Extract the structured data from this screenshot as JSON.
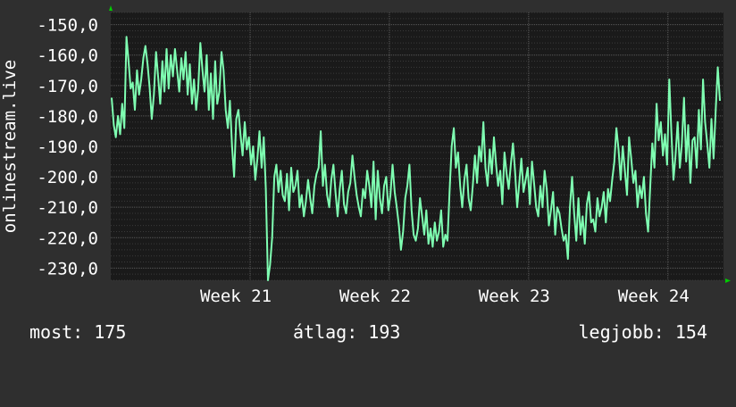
{
  "colors": {
    "background": "#2f2f2f",
    "plot_background": "#1a1a1a",
    "grid_major": "#5a5a5a",
    "grid_minor": "#3a3a3a",
    "line": "#7fffb2",
    "axis_arrow": "#00cc00",
    "text": "#ffffff"
  },
  "stats": {
    "current": "most: 175",
    "average": "átlag: 193",
    "best": "legjobb: 154"
  },
  "chart_data": {
    "type": "line",
    "title": "",
    "xlabel": "",
    "ylabel": "onlinestream.live",
    "x_ticks": [
      "Week 21",
      "Week 22",
      "Week 23",
      "Week 24"
    ],
    "y_ticks": [
      "-150,0",
      "-160,0",
      "-170,0",
      "-180,0",
      "-190,0",
      "-200,0",
      "-210,0",
      "-220,0",
      "-230,0"
    ],
    "ylim": [
      -234,
      -146
    ],
    "grid": true,
    "series": [
      {
        "values": [
          -174,
          -183,
          -187,
          -180,
          -186,
          -176,
          -184,
          -154,
          -162,
          -171,
          -169,
          -178,
          -165,
          -173,
          -168,
          -161,
          -157,
          -163,
          -171,
          -181,
          -173,
          -159,
          -167,
          -176,
          -162,
          -172,
          -158,
          -171,
          -160,
          -167,
          -158,
          -165,
          -172,
          -161,
          -168,
          -159,
          -173,
          -163,
          -176,
          -168,
          -178,
          -171,
          -156,
          -165,
          -172,
          -160,
          -178,
          -166,
          -181,
          -162,
          -176,
          -172,
          -159,
          -165,
          -178,
          -184,
          -175,
          -190,
          -200,
          -181,
          -178,
          -186,
          -193,
          -182,
          -191,
          -187,
          -196,
          -190,
          -201,
          -194,
          -185,
          -197,
          -187,
          -204,
          -234,
          -229,
          -220,
          -200,
          -196,
          -205,
          -198,
          -206,
          -208,
          -199,
          -211,
          -197,
          -205,
          -203,
          -198,
          -210,
          -206,
          -213,
          -208,
          -201,
          -207,
          -212,
          -203,
          -199,
          -197,
          -185,
          -203,
          -196,
          -206,
          -210,
          -201,
          -196,
          -205,
          -213,
          -204,
          -198,
          -209,
          -212,
          -205,
          -202,
          -193,
          -200,
          -206,
          -210,
          -213,
          -204,
          -207,
          -198,
          -203,
          -210,
          -195,
          -214,
          -198,
          -207,
          -212,
          -203,
          -200,
          -211,
          -206,
          -196,
          -205,
          -210,
          -216,
          -224,
          -218,
          -207,
          -203,
          -196,
          -211,
          -219,
          -221,
          -217,
          -207,
          -213,
          -219,
          -211,
          -222,
          -217,
          -223,
          -215,
          -221,
          -218,
          -211,
          -223,
          -219,
          -221,
          -205,
          -190,
          -184,
          -197,
          -192,
          -203,
          -210,
          -201,
          -196,
          -207,
          -211,
          -203,
          -193,
          -202,
          -190,
          -195,
          -182,
          -197,
          -203,
          -191,
          -199,
          -187,
          -196,
          -203,
          -198,
          -209,
          -192,
          -199,
          -204,
          -196,
          -189,
          -198,
          -210,
          -202,
          -194,
          -205,
          -201,
          -197,
          -209,
          -195,
          -202,
          -210,
          -213,
          -203,
          -210,
          -198,
          -204,
          -216,
          -211,
          -205,
          -219,
          -210,
          -212,
          -217,
          -221,
          -219,
          -227,
          -210,
          -200,
          -212,
          -221,
          -207,
          -219,
          -213,
          -222,
          -209,
          -205,
          -215,
          -214,
          -218,
          -207,
          -213,
          -210,
          -205,
          -215,
          -204,
          -208,
          -201,
          -195,
          -184,
          -191,
          -201,
          -190,
          -198,
          -206,
          -187,
          -194,
          -202,
          -198,
          -210,
          -203,
          -207,
          -200,
          -212,
          -218,
          -203,
          -189,
          -197,
          -176,
          -188,
          -182,
          -193,
          -186,
          -196,
          -168,
          -185,
          -201,
          -193,
          -182,
          -197,
          -189,
          -174,
          -195,
          -183,
          -202,
          -188,
          -187,
          -197,
          -178,
          -191,
          -168,
          -182,
          -189,
          -197,
          -181,
          -194,
          -178,
          -164,
          -175
        ]
      }
    ]
  }
}
